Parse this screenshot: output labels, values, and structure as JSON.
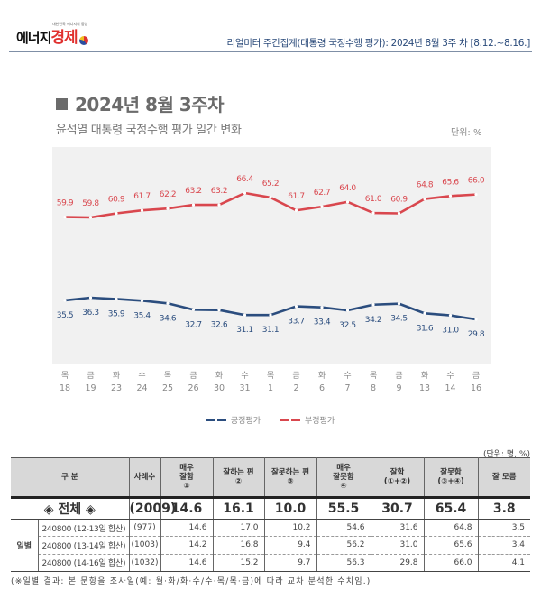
{
  "header": {
    "logo_tagline": "대한민국 에너지의 중심",
    "logo_black": "에너지",
    "logo_red": "경제",
    "report_title": "리얼미터 주간집계(대통령  국정수행  평가): 2024년 8월 3주 차 [8.12.~8.16.]"
  },
  "title": "2024년 8월 3주차",
  "subtitle": "윤석열 대통령 국정수행 평가 일간 변화",
  "unit": "단위: %",
  "chart_data": {
    "type": "line",
    "title": "윤석열 대통령 국정수행 평가 일간 변화",
    "xlabel": "",
    "ylabel": "%",
    "grid": false,
    "legend_position": "bottom-center",
    "categories": [
      {
        "weekday": "목",
        "day": "18"
      },
      {
        "weekday": "금",
        "day": "19"
      },
      {
        "weekday": "화",
        "day": "23"
      },
      {
        "weekday": "수",
        "day": "24"
      },
      {
        "weekday": "목",
        "day": "25"
      },
      {
        "weekday": "금",
        "day": "26"
      },
      {
        "weekday": "화",
        "day": "30"
      },
      {
        "weekday": "수",
        "day": "31"
      },
      {
        "weekday": "목",
        "day": "1"
      },
      {
        "weekday": "금",
        "day": "2"
      },
      {
        "weekday": "화",
        "day": "6"
      },
      {
        "weekday": "수",
        "day": "7"
      },
      {
        "weekday": "목",
        "day": "8"
      },
      {
        "weekday": "금",
        "day": "9"
      },
      {
        "weekday": "화",
        "day": "13"
      },
      {
        "weekday": "수",
        "day": "14"
      },
      {
        "weekday": "금",
        "day": "16"
      }
    ],
    "series": [
      {
        "name": "부정평가",
        "color": "#d9474e",
        "values": [
          59.9,
          59.8,
          60.9,
          61.7,
          62.2,
          63.2,
          63.2,
          66.4,
          65.2,
          61.7,
          62.7,
          64.0,
          61.0,
          60.9,
          64.8,
          65.6,
          66.0
        ],
        "labels": [
          "59.9",
          "59.8",
          "60.9",
          "61.7",
          "62.2",
          "63.2",
          "63.2",
          "66.4",
          "65.2",
          "61.7",
          "62.7",
          "64.0",
          "61.0",
          "60.9",
          "64.8",
          "65.6",
          "66.0"
        ]
      },
      {
        "name": "긍정평가",
        "color": "#2b4d7e",
        "values": [
          35.5,
          36.3,
          35.9,
          35.4,
          34.6,
          32.7,
          32.6,
          31.1,
          31.1,
          33.7,
          33.4,
          32.5,
          34.2,
          34.5,
          31.6,
          31.0,
          29.8
        ],
        "labels": [
          "35.5",
          "36.3",
          "35.9",
          "35.4",
          "34.6",
          "32.7",
          "32.6",
          "31.1",
          "31.1",
          "33.7",
          "33.4",
          "32.5",
          "34.2",
          "34.5",
          "31.6",
          "31.0",
          "29.8"
        ]
      }
    ],
    "legend": [
      "긍정평가",
      "부정평가"
    ]
  },
  "table": {
    "unit": "(단위: 명, %)",
    "headers": {
      "category": "구  분",
      "sample": "사례수",
      "very_good": [
        "매우",
        "잘함",
        "①"
      ],
      "good": [
        "잘하는 편",
        "②"
      ],
      "bad": [
        "잘못하는 편",
        "③"
      ],
      "very_bad": [
        "매우",
        "잘못함",
        "④"
      ],
      "good_total": [
        "잘함",
        "(①+②)"
      ],
      "bad_total": [
        "잘못함",
        "(③+④)"
      ],
      "dont_know": "잘 모름"
    },
    "total": {
      "label": "◈ 전체 ◈",
      "sample": "(2009)",
      "values": [
        "14.6",
        "16.1",
        "10.0",
        "55.5",
        "30.7",
        "65.4",
        "3.8"
      ]
    },
    "daily_group_label": "일별",
    "daily": [
      {
        "label": "240800 (12-13일 합산)",
        "sample": "(977)",
        "values": [
          "14.6",
          "17.0",
          "10.2",
          "54.6",
          "31.6",
          "64.8",
          "3.5"
        ]
      },
      {
        "label": "240800 (13-14일 합산)",
        "sample": "(1003)",
        "values": [
          "14.2",
          "16.8",
          "9.4",
          "56.2",
          "31.0",
          "65.6",
          "3.4"
        ]
      },
      {
        "label": "240800 (14-16일 합산)",
        "sample": "(1032)",
        "values": [
          "14.6",
          "15.2",
          "9.7",
          "56.3",
          "29.8",
          "66.0",
          "4.1"
        ]
      }
    ],
    "footnote": "(※일별 결과: 본 문항을 조사일(예: 월·화/화·수/수·목/목·금)에 따라 교차 분석한 수치임.)"
  }
}
